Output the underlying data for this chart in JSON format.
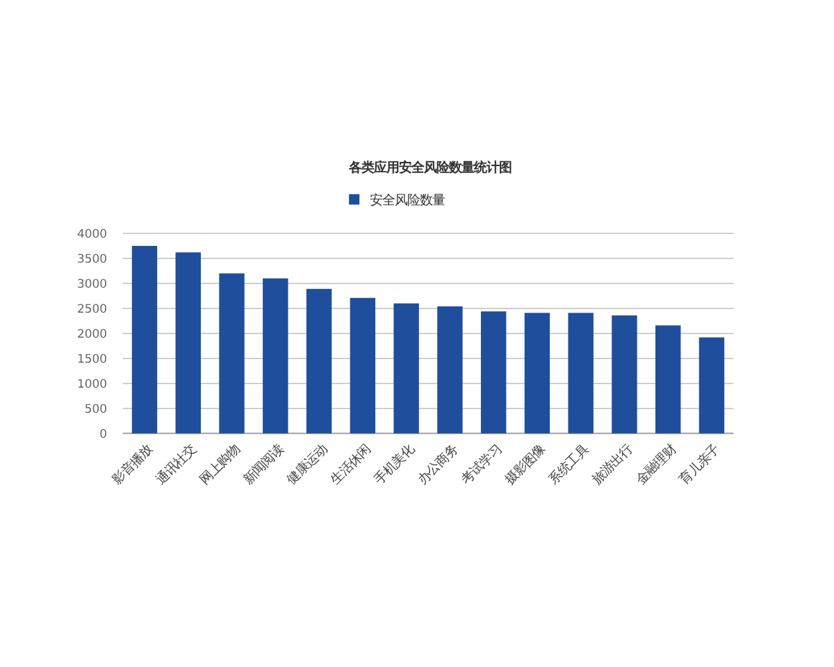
{
  "chart_data": {
    "type": "bar",
    "title": "各类应用安全风险数量统计图",
    "categories": [
      "影音播放",
      "通讯社交",
      "网上购物",
      "新闻阅读",
      "健康运动",
      "生活休闲",
      "手机美化",
      "办公商务",
      "考试学习",
      "摄影图像",
      "系统工具",
      "旅游出行",
      "金融理财",
      "育儿亲子"
    ],
    "series": [
      {
        "name": "安全风险数量",
        "color": "#1f4e9c",
        "values": [
          3750,
          3620,
          3200,
          3100,
          2890,
          2710,
          2600,
          2540,
          2440,
          2410,
          2410,
          2360,
          2160,
          1920
        ]
      }
    ],
    "ylim": [
      0,
      4000
    ],
    "yticks": [
      0,
      500,
      1000,
      1500,
      2000,
      2500,
      3000,
      3500,
      4000
    ],
    "grid": "y",
    "legend": "top"
  }
}
